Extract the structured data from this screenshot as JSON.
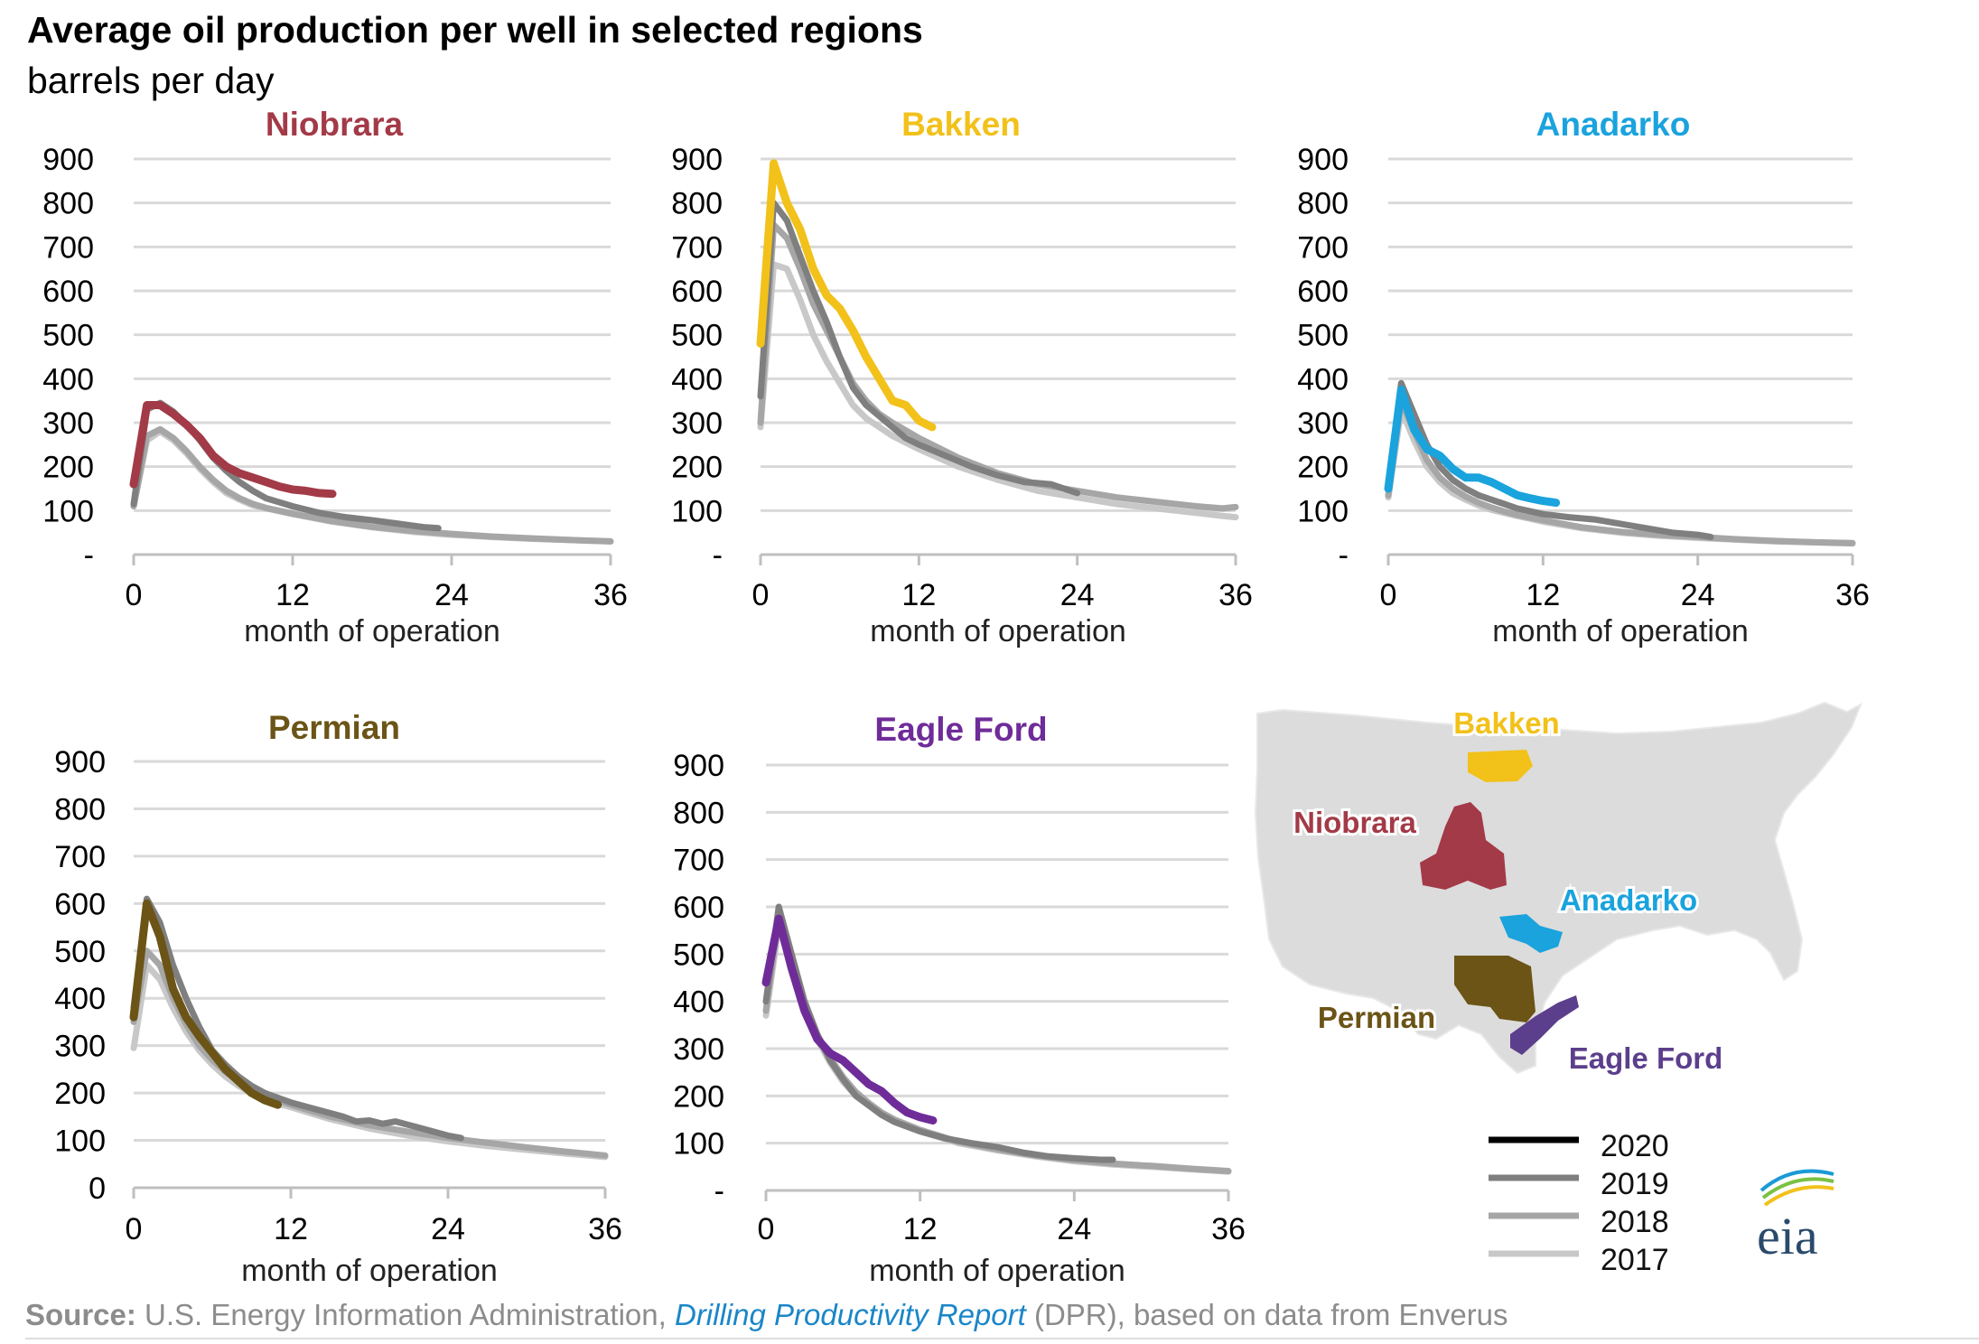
{
  "title": "Average oil production per well in selected regions",
  "subtitle": "barrels per day",
  "source": {
    "prefix": "Source:",
    "text1": " U.S. Energy Information Administration, ",
    "report": "Drilling Productivity Report",
    "text2": " (DPR), based on data from Enverus"
  },
  "legend": [
    {
      "label": "2020",
      "color": "#000000"
    },
    {
      "label": "2019",
      "color": "#7f7f7f"
    },
    {
      "label": "2018",
      "color": "#a6a6a6"
    },
    {
      "label": "2017",
      "color": "#c8c8c8"
    }
  ],
  "map": {
    "labels": [
      {
        "text": "Bakken",
        "color": "#f2c11a"
      },
      {
        "text": "Niobrara",
        "color": "#a33a47"
      },
      {
        "text": "Anadarko",
        "color": "#1aa3dd"
      },
      {
        "text": "Permian",
        "color": "#6b5416"
      },
      {
        "text": "Eagle Ford",
        "color": "#5c3f8c"
      }
    ]
  },
  "logo": "eia",
  "chart_data": [
    {
      "type": "line",
      "title": "Niobrara",
      "title_color": "#a33a47",
      "xlabel": "month of operation",
      "ylim": [
        0,
        900
      ],
      "xlim": [
        0,
        36
      ],
      "xticks": [
        0,
        12,
        24,
        36
      ],
      "ytick_labels": [
        "-",
        "100",
        "200",
        "300",
        "400",
        "500",
        "600",
        "700",
        "800",
        "900"
      ],
      "series": [
        {
          "name": "2017",
          "color": "#c8c8c8",
          "x": [
            0,
            1,
            2,
            3,
            4,
            5,
            6,
            7,
            8,
            9,
            10,
            12,
            15,
            18,
            21,
            24,
            27,
            30,
            33,
            36
          ],
          "y": [
            110,
            260,
            280,
            260,
            230,
            195,
            165,
            140,
            125,
            112,
            105,
            92,
            75,
            62,
            52,
            45,
            40,
            36,
            33,
            30
          ]
        },
        {
          "name": "2018",
          "color": "#a6a6a6",
          "x": [
            0,
            1,
            2,
            3,
            4,
            5,
            6,
            7,
            8,
            9,
            10,
            12,
            15,
            18,
            21,
            24,
            27,
            30,
            33,
            36
          ],
          "y": [
            110,
            270,
            285,
            265,
            235,
            200,
            170,
            145,
            128,
            115,
            106,
            93,
            76,
            63,
            54,
            47,
            41,
            37,
            33,
            30
          ]
        },
        {
          "name": "2019",
          "color": "#7f7f7f",
          "x": [
            0,
            1,
            2,
            3,
            4,
            5,
            6,
            7,
            8,
            9,
            10,
            12,
            14,
            16,
            18,
            20,
            22,
            23
          ],
          "y": [
            115,
            330,
            345,
            325,
            295,
            260,
            220,
            190,
            165,
            145,
            128,
            110,
            95,
            85,
            78,
            70,
            62,
            60
          ]
        },
        {
          "name": "2020",
          "color": "#a33a47",
          "x": [
            0,
            1,
            2,
            3,
            4,
            5,
            6,
            7,
            8,
            9,
            10,
            11,
            12,
            13,
            14,
            15
          ],
          "y": [
            160,
            340,
            340,
            320,
            295,
            265,
            225,
            200,
            185,
            175,
            165,
            155,
            148,
            145,
            140,
            138
          ]
        }
      ]
    },
    {
      "type": "line",
      "title": "Bakken",
      "title_color": "#f2c11a",
      "xlabel": "month of operation",
      "ylim": [
        0,
        900
      ],
      "xlim": [
        0,
        36
      ],
      "xticks": [
        0,
        12,
        24,
        36
      ],
      "ytick_labels": [
        "-",
        "100",
        "200",
        "300",
        "400",
        "500",
        "600",
        "700",
        "800",
        "900"
      ],
      "series": [
        {
          "name": "2017",
          "color": "#c8c8c8",
          "x": [
            0,
            1,
            2,
            3,
            4,
            5,
            6,
            7,
            8,
            9,
            10,
            12,
            15,
            18,
            21,
            24,
            27,
            30,
            33,
            35,
            36
          ],
          "y": [
            290,
            660,
            650,
            580,
            500,
            440,
            390,
            340,
            310,
            290,
            270,
            240,
            200,
            170,
            145,
            130,
            115,
            105,
            95,
            88,
            85
          ]
        },
        {
          "name": "2018",
          "color": "#a6a6a6",
          "x": [
            0,
            1,
            2,
            3,
            4,
            5,
            6,
            7,
            8,
            9,
            10,
            12,
            15,
            18,
            21,
            24,
            27,
            30,
            33,
            35,
            36
          ],
          "y": [
            300,
            750,
            720,
            650,
            570,
            510,
            450,
            390,
            350,
            320,
            300,
            265,
            220,
            185,
            160,
            145,
            130,
            120,
            110,
            105,
            108
          ]
        },
        {
          "name": "2019",
          "color": "#7f7f7f",
          "x": [
            0,
            1,
            2,
            3,
            4,
            5,
            6,
            7,
            8,
            9,
            10,
            11,
            12,
            14,
            16,
            18,
            20,
            22,
            24
          ],
          "y": [
            360,
            800,
            760,
            680,
            600,
            530,
            450,
            380,
            340,
            315,
            290,
            265,
            250,
            225,
            200,
            180,
            165,
            160,
            140
          ]
        },
        {
          "name": "2020",
          "color": "#f2c11a",
          "x": [
            0,
            1,
            2,
            3,
            4,
            5,
            6,
            7,
            8,
            9,
            10,
            11,
            12,
            13
          ],
          "y": [
            480,
            890,
            800,
            740,
            650,
            590,
            560,
            510,
            450,
            400,
            350,
            340,
            305,
            290
          ]
        }
      ]
    },
    {
      "type": "line",
      "title": "Anadarko",
      "title_color": "#1aa3dd",
      "xlabel": "month of operation",
      "ylim": [
        0,
        900
      ],
      "xlim": [
        0,
        36
      ],
      "xticks": [
        0,
        12,
        24,
        36
      ],
      "ytick_labels": [
        "-",
        "100",
        "200",
        "300",
        "400",
        "500",
        "600",
        "700",
        "800",
        "900"
      ],
      "series": [
        {
          "name": "2017",
          "color": "#c8c8c8",
          "x": [
            0,
            1,
            2,
            3,
            4,
            5,
            6,
            7,
            8,
            9,
            10,
            12,
            15,
            18,
            21,
            24,
            27,
            30,
            33,
            36
          ],
          "y": [
            130,
            330,
            260,
            200,
            165,
            140,
            125,
            112,
            102,
            95,
            88,
            75,
            60,
            50,
            43,
            38,
            34,
            30,
            28,
            25
          ]
        },
        {
          "name": "2018",
          "color": "#a6a6a6",
          "x": [
            0,
            1,
            2,
            3,
            4,
            5,
            6,
            7,
            8,
            9,
            10,
            12,
            15,
            18,
            21,
            24,
            27,
            30,
            33,
            36
          ],
          "y": [
            135,
            350,
            280,
            215,
            175,
            150,
            132,
            118,
            107,
            98,
            90,
            78,
            62,
            52,
            45,
            40,
            35,
            31,
            28,
            26
          ]
        },
        {
          "name": "2019",
          "color": "#7f7f7f",
          "x": [
            0,
            1,
            2,
            3,
            4,
            5,
            6,
            7,
            8,
            9,
            10,
            12,
            14,
            16,
            18,
            20,
            22,
            24,
            25
          ],
          "y": [
            150,
            390,
            320,
            250,
            200,
            170,
            150,
            135,
            125,
            115,
            105,
            92,
            85,
            80,
            70,
            60,
            50,
            45,
            40
          ]
        },
        {
          "name": "2020",
          "color": "#1aa3dd",
          "x": [
            0,
            1,
            2,
            3,
            4,
            5,
            6,
            7,
            8,
            9,
            10,
            11,
            12,
            13
          ],
          "y": [
            150,
            375,
            285,
            240,
            225,
            195,
            175,
            175,
            165,
            150,
            135,
            128,
            122,
            118
          ]
        }
      ]
    },
    {
      "type": "line",
      "title": "Permian",
      "title_color": "#6b5416",
      "xlabel": "month of operation",
      "ylim": [
        0,
        900
      ],
      "xlim": [
        0,
        36
      ],
      "xticks": [
        0,
        12,
        24,
        36
      ],
      "ytick_labels": [
        "0",
        "100",
        "200",
        "300",
        "400",
        "500",
        "600",
        "700",
        "800",
        "900"
      ],
      "series": [
        {
          "name": "2017",
          "color": "#c8c8c8",
          "x": [
            0,
            1,
            2,
            3,
            4,
            5,
            6,
            7,
            8,
            9,
            10,
            12,
            15,
            18,
            21,
            24,
            27,
            30,
            33,
            36
          ],
          "y": [
            295,
            470,
            440,
            380,
            330,
            290,
            260,
            235,
            215,
            200,
            185,
            170,
            145,
            125,
            110,
            98,
            88,
            80,
            72,
            65
          ]
        },
        {
          "name": "2018",
          "color": "#a6a6a6",
          "x": [
            0,
            1,
            2,
            3,
            4,
            5,
            6,
            7,
            8,
            9,
            10,
            12,
            15,
            18,
            21,
            24,
            27,
            30,
            33,
            36
          ],
          "y": [
            350,
            500,
            470,
            400,
            345,
            300,
            270,
            245,
            225,
            210,
            195,
            175,
            150,
            132,
            118,
            105,
            95,
            85,
            76,
            68
          ]
        },
        {
          "name": "2019",
          "color": "#7f7f7f",
          "x": [
            0,
            1,
            2,
            3,
            4,
            5,
            6,
            7,
            8,
            9,
            10,
            11,
            12,
            14,
            16,
            17,
            18,
            19,
            20,
            22,
            24,
            25
          ],
          "y": [
            380,
            610,
            560,
            470,
            400,
            340,
            290,
            260,
            235,
            215,
            200,
            190,
            180,
            165,
            150,
            140,
            142,
            135,
            140,
            125,
            110,
            105
          ]
        },
        {
          "name": "2020",
          "color": "#6b5416",
          "x": [
            0,
            1,
            2,
            3,
            4,
            5,
            6,
            7,
            8,
            9,
            10,
            11
          ],
          "y": [
            360,
            600,
            530,
            420,
            360,
            320,
            285,
            250,
            225,
            200,
            185,
            175
          ]
        }
      ]
    },
    {
      "type": "line",
      "title": "Eagle Ford",
      "title_color": "#6f2c99",
      "xlabel": "month of operation",
      "ylim": [
        0,
        900
      ],
      "xlim": [
        0,
        36
      ],
      "xticks": [
        0,
        12,
        24,
        36
      ],
      "ytick_labels": [
        "-",
        "100",
        "200",
        "300",
        "400",
        "500",
        "600",
        "700",
        "800",
        "900"
      ],
      "series": [
        {
          "name": "2017",
          "color": "#c8c8c8",
          "x": [
            0,
            1,
            2,
            3,
            4,
            5,
            6,
            7,
            8,
            9,
            10,
            12,
            15,
            18,
            21,
            24,
            27,
            30,
            33,
            36
          ],
          "y": [
            370,
            560,
            470,
            380,
            320,
            270,
            230,
            200,
            180,
            160,
            145,
            125,
            100,
            85,
            72,
            62,
            55,
            50,
            45,
            40
          ]
        },
        {
          "name": "2018",
          "color": "#a6a6a6",
          "x": [
            0,
            1,
            2,
            3,
            4,
            5,
            6,
            7,
            8,
            9,
            10,
            12,
            15,
            18,
            21,
            24,
            27,
            30,
            33,
            36
          ],
          "y": [
            380,
            580,
            490,
            395,
            330,
            280,
            240,
            208,
            185,
            165,
            150,
            128,
            103,
            87,
            74,
            64,
            57,
            52,
            46,
            41
          ]
        },
        {
          "name": "2019",
          "color": "#7f7f7f",
          "x": [
            0,
            1,
            2,
            3,
            4,
            5,
            6,
            7,
            8,
            9,
            10,
            12,
            14,
            16,
            18,
            20,
            22,
            24,
            26,
            27
          ],
          "y": [
            400,
            600,
            500,
            400,
            330,
            275,
            235,
            200,
            180,
            160,
            145,
            125,
            110,
            100,
            92,
            80,
            72,
            68,
            65,
            65
          ]
        },
        {
          "name": "2020",
          "color": "#6f2c99",
          "x": [
            0,
            1,
            2,
            3,
            4,
            5,
            6,
            7,
            8,
            9,
            10,
            11,
            12,
            13
          ],
          "y": [
            440,
            575,
            470,
            380,
            320,
            290,
            275,
            250,
            225,
            210,
            185,
            165,
            155,
            148
          ]
        }
      ]
    }
  ]
}
